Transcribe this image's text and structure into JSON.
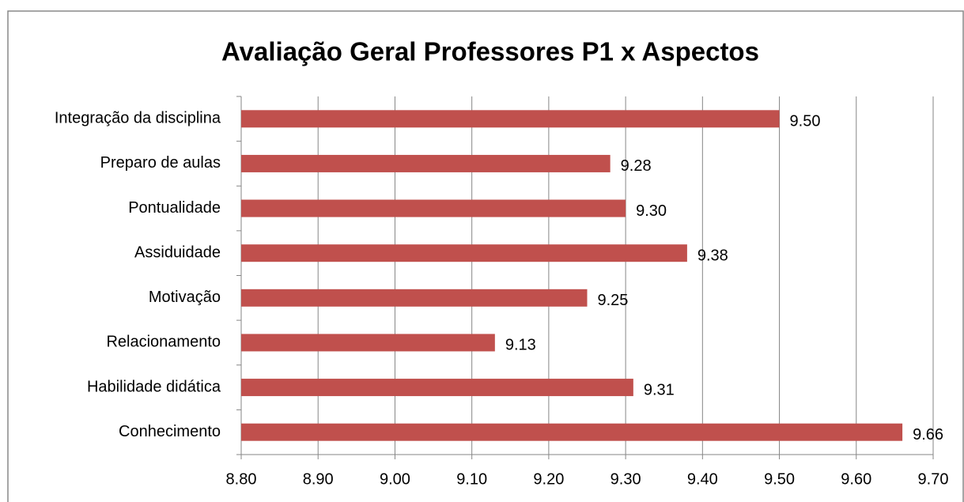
{
  "chart_data": {
    "type": "bar",
    "orientation": "horizontal",
    "title": "Avaliação Geral Professores P1 x Aspectos",
    "categories": [
      "Integração da disciplina",
      "Preparo de aulas",
      "Pontualidade",
      "Assiduidade",
      "Motivação",
      "Relacionamento",
      "Habilidade didática",
      "Conhecimento"
    ],
    "values": [
      9.5,
      9.28,
      9.3,
      9.38,
      9.25,
      9.13,
      9.31,
      9.66
    ],
    "value_labels": [
      "9.50",
      "9.28",
      "9.30",
      "9.38",
      "9.25",
      "9.13",
      "9.31",
      "9.66"
    ],
    "color": "#c0504d",
    "xlim": [
      8.8,
      9.7
    ],
    "xticks": [
      {
        "value": 8.8,
        "label": "8.80"
      },
      {
        "value": 8.9,
        "label": "8.90"
      },
      {
        "value": 9.0,
        "label": "9.00"
      },
      {
        "value": 9.1,
        "label": "9.10"
      },
      {
        "value": 9.2,
        "label": "9.20"
      },
      {
        "value": 9.3,
        "label": "9.30"
      },
      {
        "value": 9.4,
        "label": "9.40"
      },
      {
        "value": 9.5,
        "label": "9.50"
      },
      {
        "value": 9.6,
        "label": "9.60"
      },
      {
        "value": 9.7,
        "label": "9.70"
      }
    ],
    "grid": true
  }
}
